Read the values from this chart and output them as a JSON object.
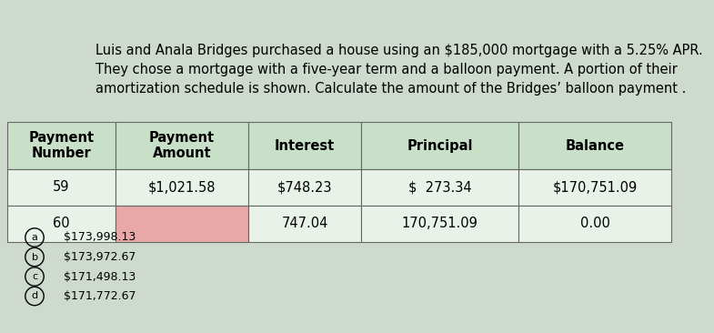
{
  "title_text": "Luis and Anala Bridges purchased a house using an $185,000 mortgage with a 5.25% APR.\nThey chose a mortgage with a five-year term and a balloon payment. A portion of their\namortization schedule is shown. Calculate the amount of the Bridges’ balloon payment .",
  "table_header": [
    "Payment\nNumber",
    "Payment\nAmount",
    "Interest",
    "Principal",
    "Balance"
  ],
  "row1": [
    "59",
    "$1,021.58",
    "$748.23",
    "$  273.34",
    "$170,751.09"
  ],
  "row2": [
    "60",
    "",
    "747.04",
    "170,751.09",
    "0.00"
  ],
  "header_bg": "#c8dfc8",
  "row_bg": "#e8f2e8",
  "row2_payment_bg": "#e8a8a8",
  "border_color": "#666666",
  "options": [
    [
      "a",
      "$173,998.13"
    ],
    [
      "b",
      "$173,972.67"
    ],
    [
      "c",
      "$171,498.13"
    ],
    [
      "d",
      "$171,772.67"
    ]
  ],
  "option_fontsize": 9,
  "title_fontsize": 10.5,
  "table_fontsize": 10.5,
  "figure_bg": "#cddacd"
}
